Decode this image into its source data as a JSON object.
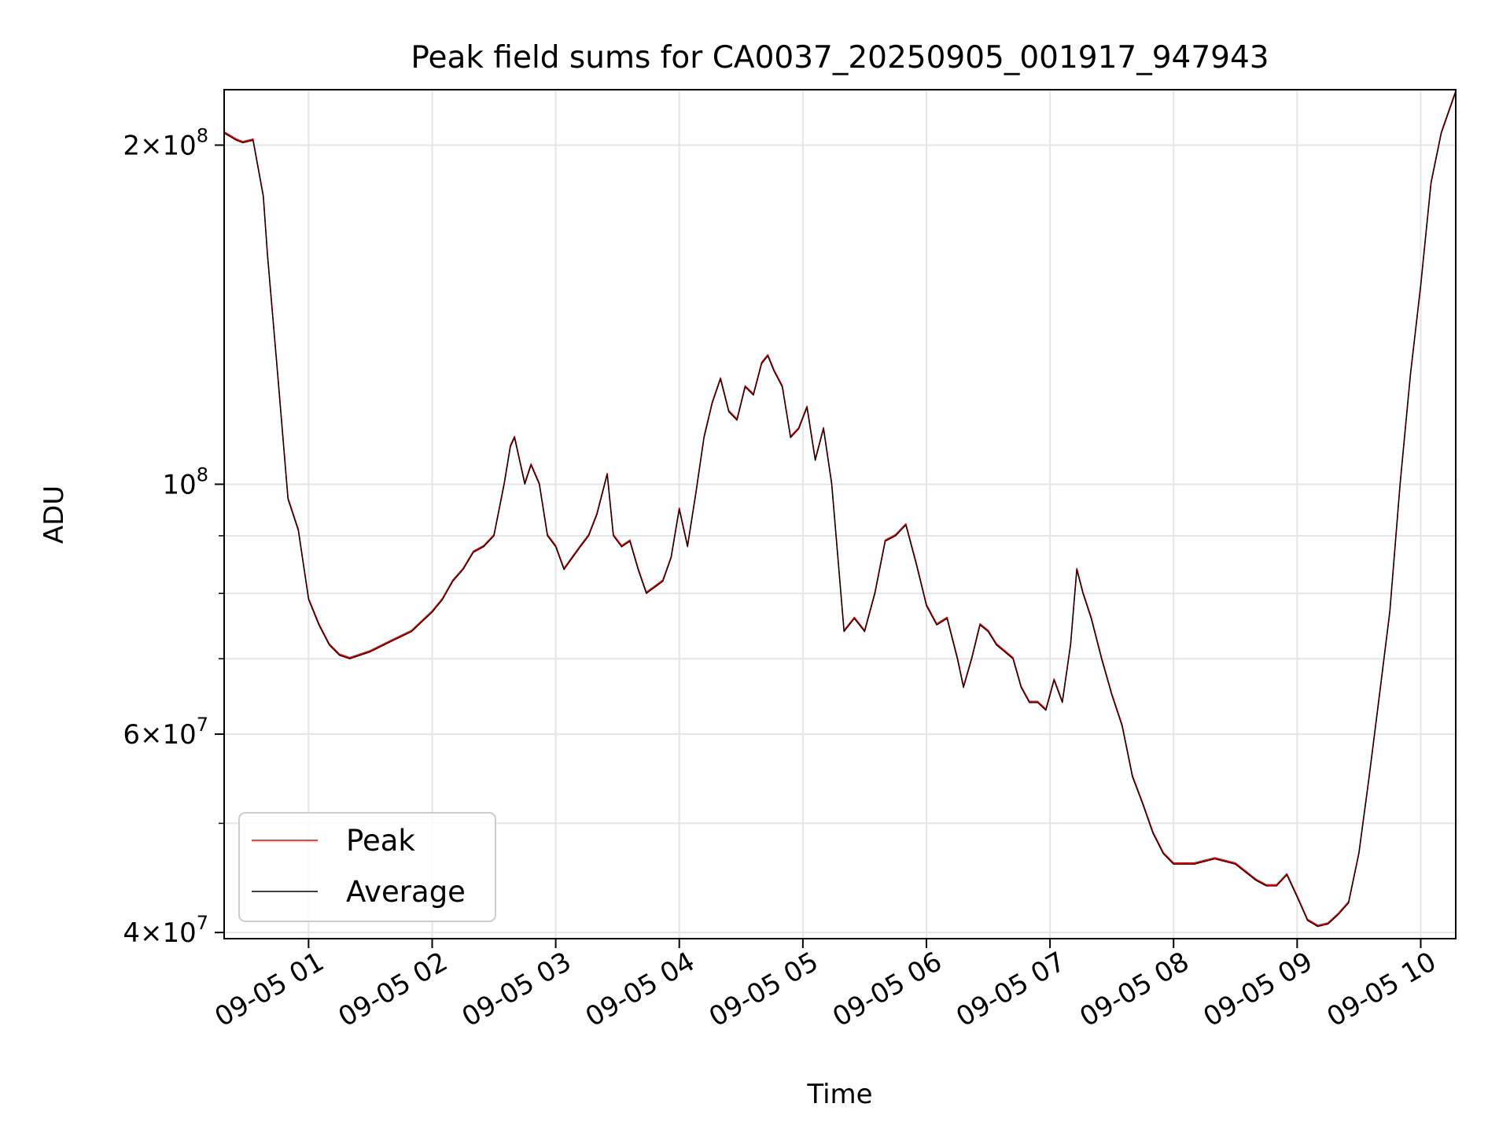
{
  "chart_data": {
    "type": "line",
    "title": "Peak field sums for CA0037_20250905_001917_947943",
    "xlabel": "Time",
    "ylabel": "ADU",
    "yscale": "log",
    "xlim": [
      "09-05 00:19",
      "09-05 10:17"
    ],
    "ylim": [
      39500000,
      224000000
    ],
    "grid": true,
    "legend": "lower-left",
    "x_ticks": [
      "09-05 01",
      "09-05 02",
      "09-05 03",
      "09-05 04",
      "09-05 05",
      "09-05 06",
      "09-05 07",
      "09-05 08",
      "09-05 09",
      "09-05 10"
    ],
    "y_major_ticks": [
      {
        "value": 40000000,
        "mantissa": "4",
        "base": "10",
        "exp": "7"
      },
      {
        "value": 60000000,
        "mantissa": "6",
        "base": "10",
        "exp": "7"
      },
      {
        "value": 100000000,
        "mantissa": "",
        "base": "10",
        "exp": "8"
      },
      {
        "value": 200000000,
        "mantissa": "2",
        "base": "10",
        "exp": "8"
      }
    ],
    "y_minor_ticks": [
      50000000,
      70000000,
      80000000,
      90000000
    ],
    "series": [
      {
        "name": "Peak",
        "color": "#ff0000"
      },
      {
        "name": "Average",
        "color": "#000000"
      }
    ],
    "x": [
      "09-05 00:19",
      "09-05 00:25",
      "09-05 00:28",
      "09-05 00:33",
      "09-05 00:38",
      "09-05 00:40",
      "09-05 00:45",
      "09-05 00:50",
      "09-05 00:55",
      "09-05 00:57",
      "09-05 01:00",
      "09-05 01:05",
      "09-05 01:10",
      "09-05 01:15",
      "09-05 01:20",
      "09-05 01:30",
      "09-05 01:40",
      "09-05 01:50",
      "09-05 02:00",
      "09-05 02:05",
      "09-05 02:10",
      "09-05 02:15",
      "09-05 02:20",
      "09-05 02:25",
      "09-05 02:30",
      "09-05 02:35",
      "09-05 02:38",
      "09-05 02:40",
      "09-05 02:45",
      "09-05 02:48",
      "09-05 02:52",
      "09-05 02:56",
      "09-05 03:00",
      "09-05 03:04",
      "09-05 03:08",
      "09-05 03:12",
      "09-05 03:16",
      "09-05 03:20",
      "09-05 03:25",
      "09-05 03:28",
      "09-05 03:32",
      "09-05 03:36",
      "09-05 03:40",
      "09-05 03:44",
      "09-05 03:48",
      "09-05 03:52",
      "09-05 03:56",
      "09-05 04:00",
      "09-05 04:04",
      "09-05 04:08",
      "09-05 04:12",
      "09-05 04:16",
      "09-05 04:20",
      "09-05 04:24",
      "09-05 04:28",
      "09-05 04:32",
      "09-05 04:36",
      "09-05 04:40",
      "09-05 04:43",
      "09-05 04:46",
      "09-05 04:50",
      "09-05 04:54",
      "09-05 04:58",
      "09-05 05:02",
      "09-05 05:06",
      "09-05 05:10",
      "09-05 05:14",
      "09-05 05:17",
      "09-05 05:20",
      "09-05 05:25",
      "09-05 05:30",
      "09-05 05:35",
      "09-05 05:40",
      "09-05 05:45",
      "09-05 05:50",
      "09-05 05:55",
      "09-05 06:00",
      "09-05 06:05",
      "09-05 06:10",
      "09-05 06:15",
      "09-05 06:18",
      "09-05 06:22",
      "09-05 06:26",
      "09-05 06:30",
      "09-05 06:34",
      "09-05 06:38",
      "09-05 06:42",
      "09-05 06:46",
      "09-05 06:50",
      "09-05 06:54",
      "09-05 06:58",
      "09-05 07:02",
      "09-05 07:06",
      "09-05 07:10",
      "09-05 07:13",
      "09-05 07:16",
      "09-05 07:20",
      "09-05 07:25",
      "09-05 07:30",
      "09-05 07:35",
      "09-05 07:40",
      "09-05 07:45",
      "09-05 07:50",
      "09-05 07:55",
      "09-05 08:00",
      "09-05 08:10",
      "09-05 08:20",
      "09-05 08:30",
      "09-05 08:40",
      "09-05 08:45",
      "09-05 08:50",
      "09-05 08:55",
      "09-05 09:00",
      "09-05 09:05",
      "09-05 09:10",
      "09-05 09:15",
      "09-05 09:20",
      "09-05 09:25",
      "09-05 09:30",
      "09-05 09:35",
      "09-05 09:40",
      "09-05 09:45",
      "09-05 09:50",
      "09-05 09:55",
      "09-05 10:00",
      "09-05 10:05",
      "09-05 10:10",
      "09-05 10:17"
    ],
    "y": [
      205000000,
      202000000,
      201000000,
      202000000,
      180000000,
      160000000,
      125000000,
      97000000,
      91000000,
      86000000,
      79000000,
      75000000,
      72000000,
      70500000,
      70000000,
      71000000,
      72500000,
      74000000,
      77000000,
      79000000,
      82000000,
      84000000,
      87000000,
      88000000,
      90000000,
      100000000,
      108000000,
      110000000,
      100000000,
      104000000,
      100000000,
      90000000,
      88000000,
      84000000,
      86000000,
      88000000,
      90000000,
      94000000,
      102000000,
      90000000,
      88000000,
      89000000,
      84000000,
      80000000,
      81000000,
      82000000,
      86000000,
      95000000,
      88000000,
      98000000,
      110000000,
      118000000,
      124000000,
      116000000,
      114000000,
      122000000,
      120000000,
      128000000,
      130000000,
      126000000,
      122000000,
      110000000,
      112000000,
      117000000,
      105000000,
      112000000,
      100000000,
      86000000,
      74000000,
      76000000,
      74000000,
      80000000,
      89000000,
      90000000,
      92000000,
      85000000,
      78000000,
      75000000,
      76000000,
      70000000,
      66000000,
      70000000,
      75000000,
      74000000,
      72000000,
      71000000,
      70000000,
      66000000,
      64000000,
      64000000,
      63000000,
      67000000,
      64000000,
      72000000,
      84000000,
      80000000,
      76000000,
      70000000,
      65000000,
      61000000,
      55000000,
      52000000,
      49000000,
      47000000,
      46000000,
      46000000,
      46500000,
      46000000,
      44500000,
      44000000,
      44000000,
      45000000,
      43000000,
      41000000,
      40500000,
      40700000,
      41500000,
      42500000,
      47000000,
      55000000,
      65000000,
      77000000,
      100000000,
      125000000,
      150000000,
      185000000,
      205000000,
      223000000
    ]
  }
}
